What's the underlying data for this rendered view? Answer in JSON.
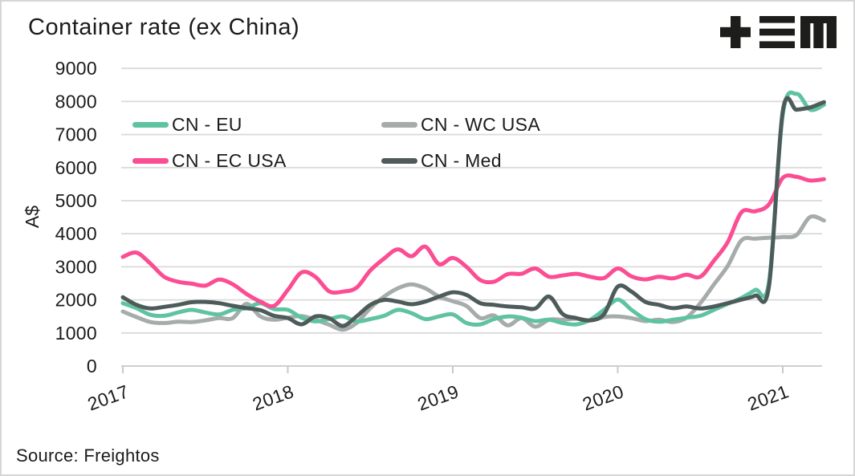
{
  "page": {
    "background": "#ffffff",
    "frame_color": "#d6d6d6",
    "text_color": "#1b1b1b",
    "logo_name": "tem-logo",
    "logo_color": "#1d1d1b",
    "source": "Source: Freightos"
  },
  "chart_data": {
    "type": "line",
    "title": "Container rate (ex China)",
    "xlabel": "",
    "ylabel": "A$",
    "ylim": [
      0,
      9000
    ],
    "y_ticks": [
      0,
      1000,
      2000,
      3000,
      4000,
      5000,
      6000,
      7000,
      8000,
      9000
    ],
    "x_ticks": [
      2017,
      2018,
      2019,
      2020,
      2021
    ],
    "grid": "horizontal",
    "gridline_color": "#dadada",
    "axis_color": "#c8c8c8",
    "legend_position": "inside-top-left, 2 columns",
    "x_start_year": 2017,
    "x_points_per_year": 12,
    "x_note": "monthly estimates, Jan 2017 - Apr 2021, values in A$ read from plot",
    "series": [
      {
        "name": "CN - EU",
        "color": "#5fc3a1",
        "values": [
          1900,
          1750,
          1550,
          1520,
          1620,
          1700,
          1620,
          1560,
          1700,
          1750,
          1900,
          1720,
          1700,
          1460,
          1350,
          1420,
          1500,
          1350,
          1420,
          1520,
          1700,
          1600,
          1420,
          1500,
          1560,
          1300,
          1260,
          1420,
          1500,
          1460,
          1360,
          1400,
          1300,
          1260,
          1400,
          1700,
          2010,
          1700,
          1420,
          1340,
          1400,
          1460,
          1520,
          1700,
          1880,
          2060,
          2300,
          2550,
          7600,
          8230,
          7750,
          7900
        ]
      },
      {
        "name": "CN - EC USA",
        "color": "#fb4d93",
        "values": [
          3300,
          3430,
          3100,
          2700,
          2550,
          2490,
          2430,
          2615,
          2470,
          2180,
          1950,
          1820,
          2300,
          2830,
          2700,
          2260,
          2250,
          2370,
          2890,
          3250,
          3530,
          3320,
          3610,
          3080,
          3270,
          3000,
          2600,
          2550,
          2780,
          2790,
          2950,
          2700,
          2740,
          2790,
          2700,
          2660,
          2950,
          2710,
          2620,
          2700,
          2650,
          2760,
          2700,
          3190,
          3750,
          4650,
          4680,
          4890,
          5690,
          5720,
          5610,
          5650
        ]
      },
      {
        "name": "CN - WC USA",
        "color": "#a5acaa",
        "values": [
          1650,
          1480,
          1330,
          1300,
          1340,
          1330,
          1380,
          1450,
          1450,
          1880,
          1500,
          1400,
          1460,
          1510,
          1400,
          1250,
          1100,
          1300,
          1750,
          2100,
          2350,
          2470,
          2350,
          2100,
          1960,
          1815,
          1450,
          1530,
          1230,
          1450,
          1190,
          1400,
          1400,
          1430,
          1380,
          1480,
          1500,
          1450,
          1360,
          1400,
          1330,
          1460,
          1900,
          2470,
          3030,
          3800,
          3850,
          3880,
          3900,
          3960,
          4510,
          4400
        ]
      },
      {
        "name": "CN - Med",
        "color": "#4d5c5a",
        "values": [
          2080,
          1850,
          1740,
          1790,
          1850,
          1930,
          1940,
          1900,
          1820,
          1750,
          1690,
          1520,
          1450,
          1260,
          1500,
          1450,
          1210,
          1500,
          1850,
          2000,
          1950,
          1870,
          1950,
          2100,
          2230,
          2150,
          1900,
          1850,
          1800,
          1780,
          1740,
          2100,
          1570,
          1450,
          1380,
          1570,
          2400,
          2250,
          1940,
          1850,
          1750,
          1800,
          1740,
          1800,
          1900,
          2010,
          2130,
          2420,
          7700,
          7750,
          7820,
          7980
        ]
      }
    ]
  }
}
